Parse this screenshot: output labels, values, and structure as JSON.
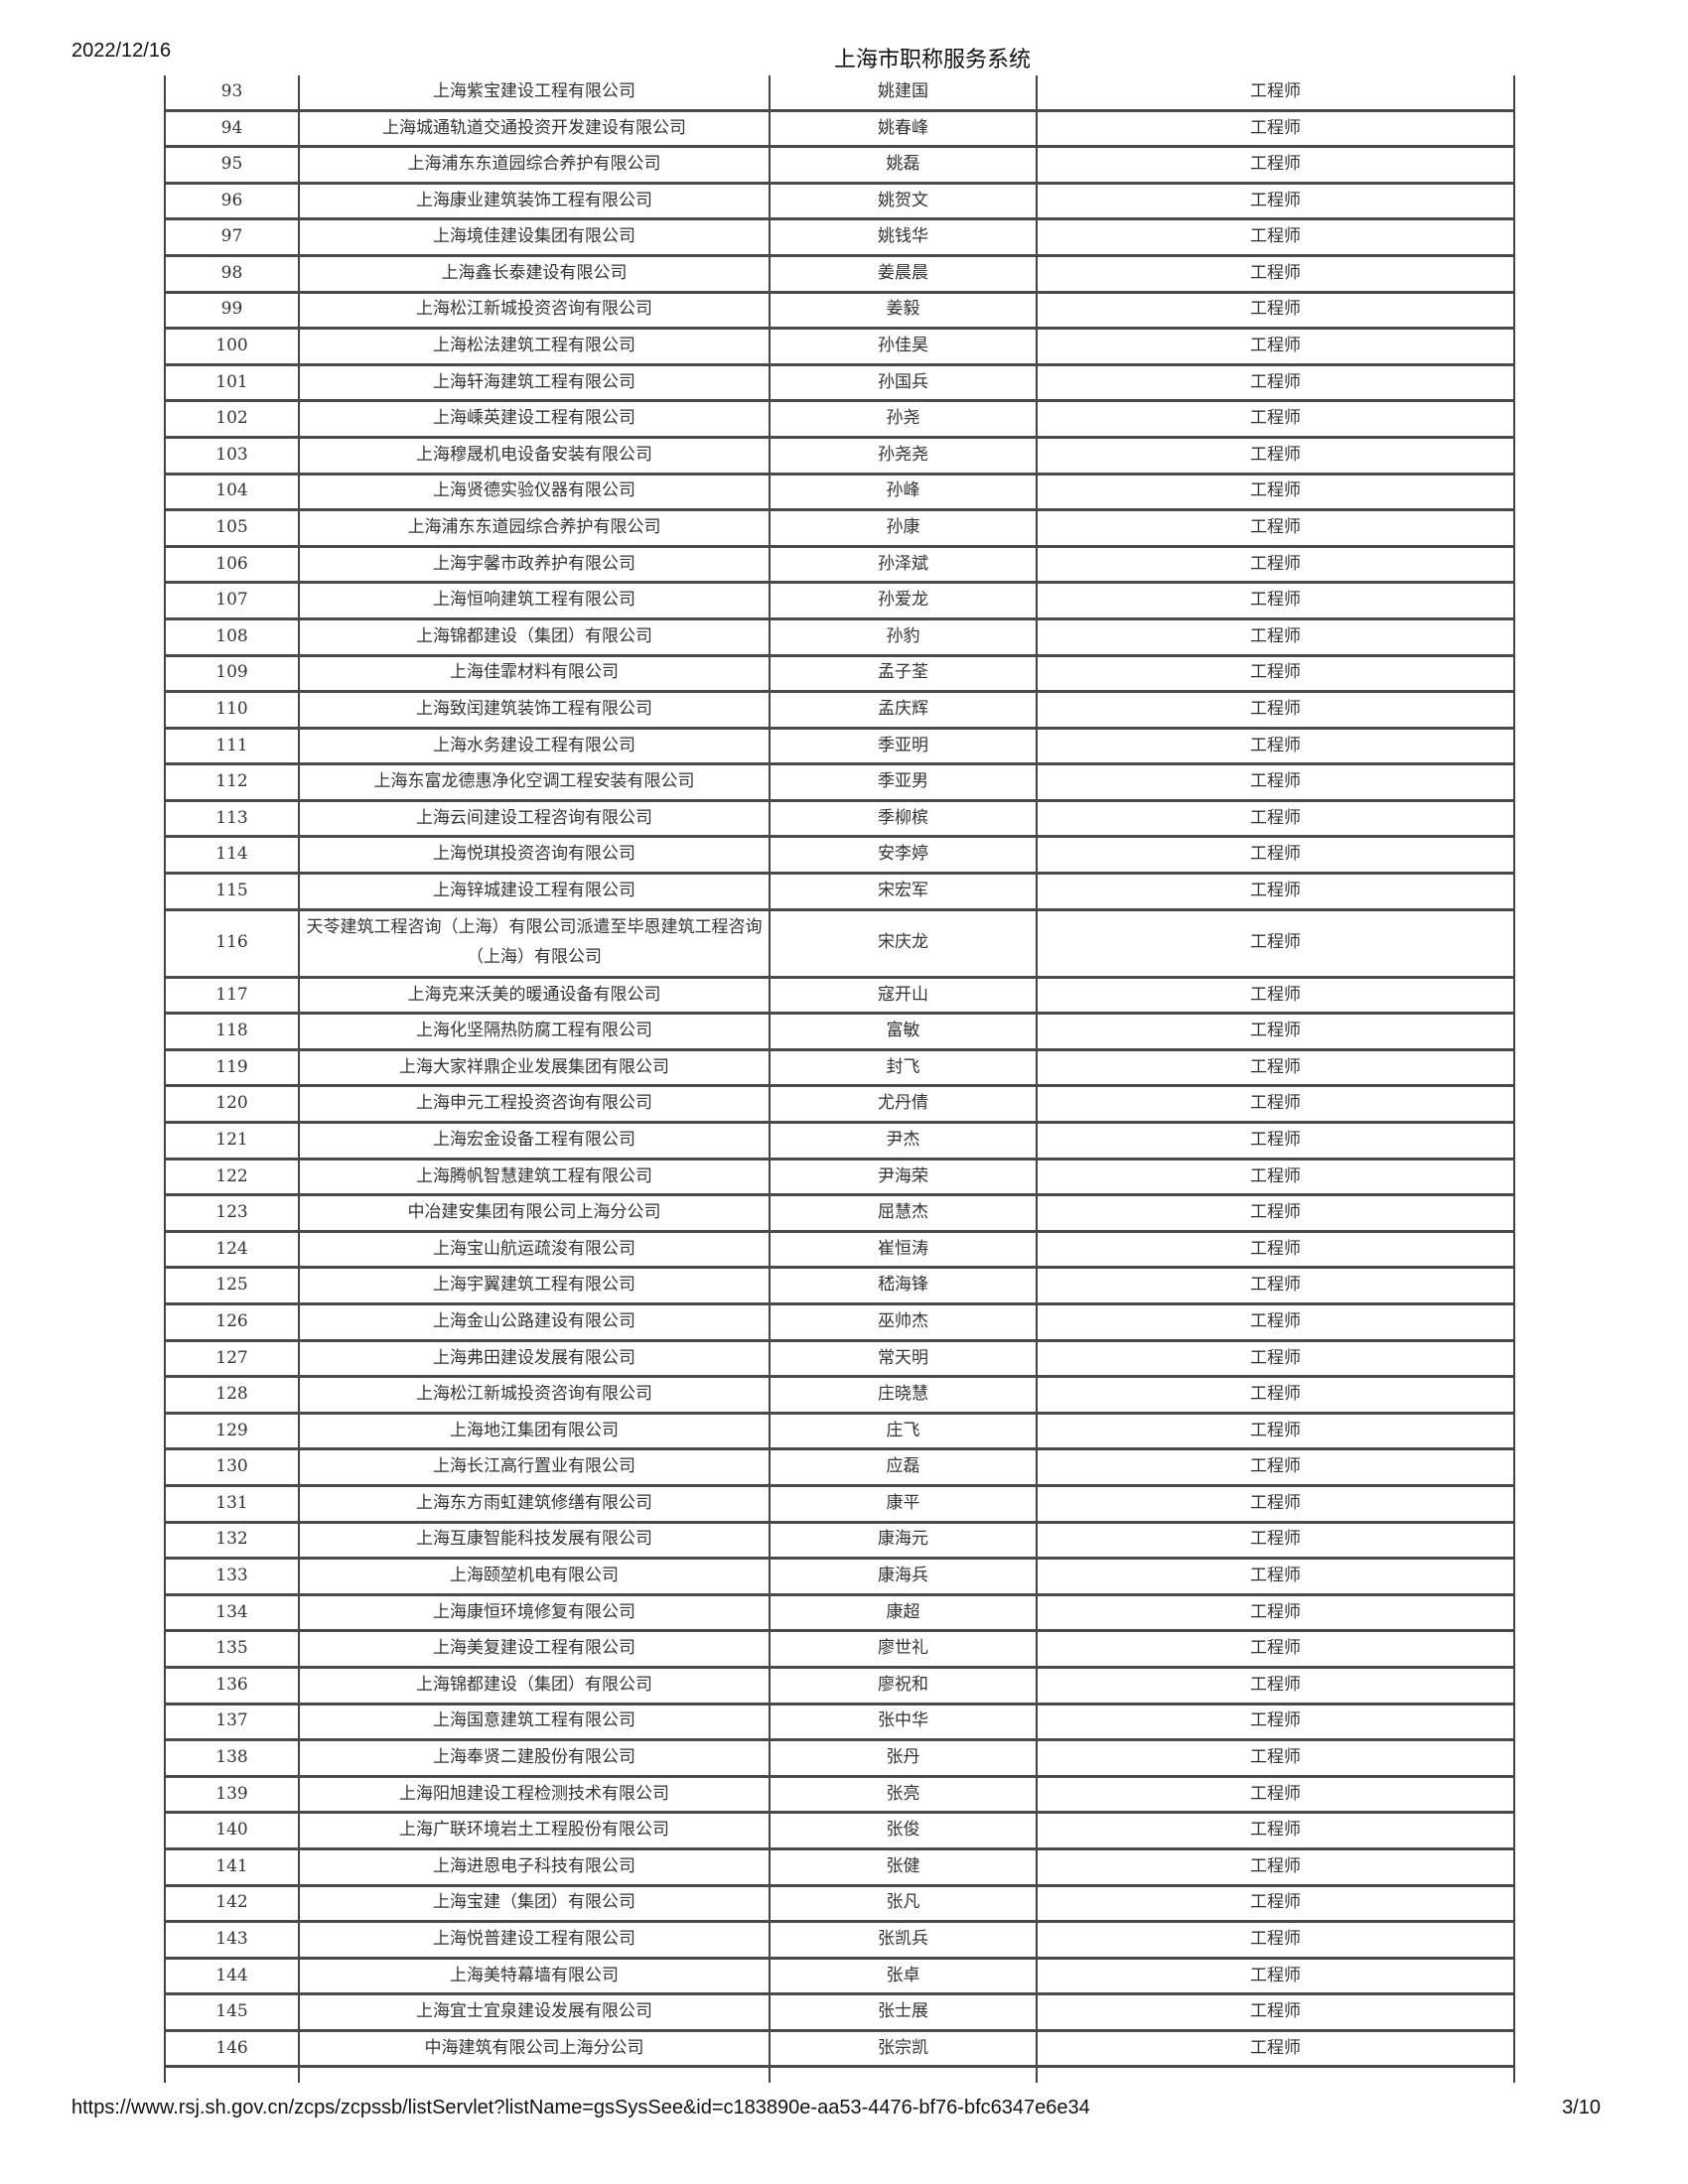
{
  "header": {
    "date": "2022/12/16",
    "title": "上海市职称服务系统"
  },
  "footer": {
    "url": "https://www.rsj.sh.gov.cn/zcps/zcpssb/listServlet?listName=gsSysSee&id=c183890e-aa53-4476-bf76-bfc6347e6e34",
    "page": "3/10"
  },
  "rows": [
    {
      "no": "93",
      "company": "上海紫宝建设工程有限公司",
      "name": "姚建国",
      "title": "工程师"
    },
    {
      "no": "94",
      "company": "上海城通轨道交通投资开发建设有限公司",
      "name": "姚春峰",
      "title": "工程师"
    },
    {
      "no": "95",
      "company": "上海浦东东道园综合养护有限公司",
      "name": "姚磊",
      "title": "工程师"
    },
    {
      "no": "96",
      "company": "上海康业建筑装饰工程有限公司",
      "name": "姚贺文",
      "title": "工程师"
    },
    {
      "no": "97",
      "company": "上海境佳建设集团有限公司",
      "name": "姚钱华",
      "title": "工程师"
    },
    {
      "no": "98",
      "company": "上海鑫长泰建设有限公司",
      "name": "姜晨晨",
      "title": "工程师"
    },
    {
      "no": "99",
      "company": "上海松江新城投资咨询有限公司",
      "name": "姜毅",
      "title": "工程师"
    },
    {
      "no": "100",
      "company": "上海松法建筑工程有限公司",
      "name": "孙佳昊",
      "title": "工程师"
    },
    {
      "no": "101",
      "company": "上海轩海建筑工程有限公司",
      "name": "孙国兵",
      "title": "工程师"
    },
    {
      "no": "102",
      "company": "上海嵊英建设工程有限公司",
      "name": "孙尧",
      "title": "工程师"
    },
    {
      "no": "103",
      "company": "上海穆晟机电设备安装有限公司",
      "name": "孙尧尧",
      "title": "工程师"
    },
    {
      "no": "104",
      "company": "上海贤德实验仪器有限公司",
      "name": "孙峰",
      "title": "工程师"
    },
    {
      "no": "105",
      "company": "上海浦东东道园综合养护有限公司",
      "name": "孙康",
      "title": "工程师"
    },
    {
      "no": "106",
      "company": "上海宇馨市政养护有限公司",
      "name": "孙泽斌",
      "title": "工程师"
    },
    {
      "no": "107",
      "company": "上海恒响建筑工程有限公司",
      "name": "孙爱龙",
      "title": "工程师"
    },
    {
      "no": "108",
      "company": "上海锦都建设（集团）有限公司",
      "name": "孙豹",
      "title": "工程师"
    },
    {
      "no": "109",
      "company": "上海佳霏材料有限公司",
      "name": "孟子荃",
      "title": "工程师"
    },
    {
      "no": "110",
      "company": "上海致闰建筑装饰工程有限公司",
      "name": "孟庆辉",
      "title": "工程师"
    },
    {
      "no": "111",
      "company": "上海水务建设工程有限公司",
      "name": "季亚明",
      "title": "工程师"
    },
    {
      "no": "112",
      "company": "上海东富龙德惠净化空调工程安装有限公司",
      "name": "季亚男",
      "title": "工程师"
    },
    {
      "no": "113",
      "company": "上海云间建设工程咨询有限公司",
      "name": "季柳槟",
      "title": "工程师"
    },
    {
      "no": "114",
      "company": "上海悦琪投资咨询有限公司",
      "name": "安李婷",
      "title": "工程师"
    },
    {
      "no": "115",
      "company": "上海锌城建设工程有限公司",
      "name": "宋宏军",
      "title": "工程师"
    },
    {
      "no": "116",
      "company": "天苓建筑工程咨询（上海）有限公司派遣至毕恩建筑工程咨询（上海）有限公司",
      "name": "宋庆龙",
      "title": "工程师"
    },
    {
      "no": "117",
      "company": "上海克来沃美的暖通设备有限公司",
      "name": "寇开山",
      "title": "工程师"
    },
    {
      "no": "118",
      "company": "上海化坚隔热防腐工程有限公司",
      "name": "富敏",
      "title": "工程师"
    },
    {
      "no": "119",
      "company": "上海大家祥鼎企业发展集团有限公司",
      "name": "封飞",
      "title": "工程师"
    },
    {
      "no": "120",
      "company": "上海申元工程投资咨询有限公司",
      "name": "尤丹倩",
      "title": "工程师"
    },
    {
      "no": "121",
      "company": "上海宏金设备工程有限公司",
      "name": "尹杰",
      "title": "工程师"
    },
    {
      "no": "122",
      "company": "上海腾帆智慧建筑工程有限公司",
      "name": "尹海荣",
      "title": "工程师"
    },
    {
      "no": "123",
      "company": "中冶建安集团有限公司上海分公司",
      "name": "屈慧杰",
      "title": "工程师"
    },
    {
      "no": "124",
      "company": "上海宝山航运疏浚有限公司",
      "name": "崔恒涛",
      "title": "工程师"
    },
    {
      "no": "125",
      "company": "上海宇翼建筑工程有限公司",
      "name": "嵇海锋",
      "title": "工程师"
    },
    {
      "no": "126",
      "company": "上海金山公路建设有限公司",
      "name": "巫帅杰",
      "title": "工程师"
    },
    {
      "no": "127",
      "company": "上海弗田建设发展有限公司",
      "name": "常天明",
      "title": "工程师"
    },
    {
      "no": "128",
      "company": "上海松江新城投资咨询有限公司",
      "name": "庄晓慧",
      "title": "工程师"
    },
    {
      "no": "129",
      "company": "上海地江集团有限公司",
      "name": "庄飞",
      "title": "工程师"
    },
    {
      "no": "130",
      "company": "上海长江高行置业有限公司",
      "name": "应磊",
      "title": "工程师"
    },
    {
      "no": "131",
      "company": "上海东方雨虹建筑修缮有限公司",
      "name": "康平",
      "title": "工程师"
    },
    {
      "no": "132",
      "company": "上海互康智能科技发展有限公司",
      "name": "康海元",
      "title": "工程师"
    },
    {
      "no": "133",
      "company": "上海颐堃机电有限公司",
      "name": "康海兵",
      "title": "工程师"
    },
    {
      "no": "134",
      "company": "上海康恒环境修复有限公司",
      "name": "康超",
      "title": "工程师"
    },
    {
      "no": "135",
      "company": "上海美复建设工程有限公司",
      "name": "廖世礼",
      "title": "工程师"
    },
    {
      "no": "136",
      "company": "上海锦都建设（集团）有限公司",
      "name": "廖祝和",
      "title": "工程师"
    },
    {
      "no": "137",
      "company": "上海国意建筑工程有限公司",
      "name": "张中华",
      "title": "工程师"
    },
    {
      "no": "138",
      "company": "上海奉贤二建股份有限公司",
      "name": "张丹",
      "title": "工程师"
    },
    {
      "no": "139",
      "company": "上海阳旭建设工程检测技术有限公司",
      "name": "张亮",
      "title": "工程师"
    },
    {
      "no": "140",
      "company": "上海广联环境岩土工程股份有限公司",
      "name": "张俊",
      "title": "工程师"
    },
    {
      "no": "141",
      "company": "上海进恩电子科技有限公司",
      "name": "张健",
      "title": "工程师"
    },
    {
      "no": "142",
      "company": "上海宝建（集团）有限公司",
      "name": "张凡",
      "title": "工程师"
    },
    {
      "no": "143",
      "company": "上海悦普建设工程有限公司",
      "name": "张凯兵",
      "title": "工程师"
    },
    {
      "no": "144",
      "company": "上海美特幕墙有限公司",
      "name": "张卓",
      "title": "工程师"
    },
    {
      "no": "145",
      "company": "上海宜士宜泉建设发展有限公司",
      "name": "张士展",
      "title": "工程师"
    },
    {
      "no": "146",
      "company": "中海建筑有限公司上海分公司",
      "name": "张宗凯",
      "title": "工程师"
    }
  ]
}
